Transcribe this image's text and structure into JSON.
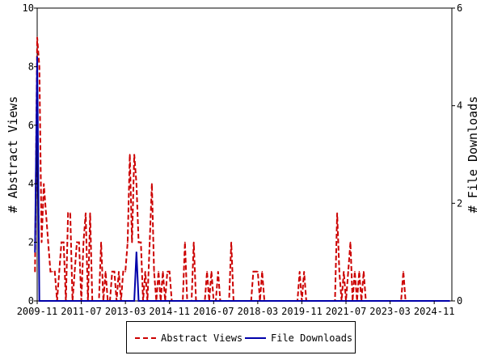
{
  "chart_data": {
    "type": "line",
    "xlabel": "",
    "ylabel": "# Abstract Views",
    "ylabel_right": "# File Downloads",
    "x_tick_labels": [
      "2009-11",
      "2011-07",
      "2013-03",
      "2014-11",
      "2016-07",
      "2018-03",
      "2019-11",
      "2021-07",
      "2023-03",
      "2024-11"
    ],
    "x_start": "2009-11",
    "x_end": "2025-07",
    "ylim": [
      0,
      10
    ],
    "ylim_right": [
      0,
      6
    ],
    "yticks": [
      0,
      2,
      4,
      6,
      8,
      10
    ],
    "yticks_right": [
      0,
      2,
      4,
      6
    ],
    "grid": false,
    "legend_position": "bottom",
    "series": [
      {
        "name": "Abstract Views",
        "axis": "left",
        "color": "#cc0000",
        "dash": "dashed",
        "points": [
          [
            "2009-10",
            1
          ],
          [
            "2009-11",
            9
          ],
          [
            "2009-12",
            8
          ],
          [
            "2010-01",
            2
          ],
          [
            "2010-02",
            4
          ],
          [
            "2010-03",
            3
          ],
          [
            "2010-04",
            2
          ],
          [
            "2010-05",
            1
          ],
          [
            "2010-06",
            1
          ],
          [
            "2010-07",
            1
          ],
          [
            "2010-08",
            0
          ],
          [
            "2010-09",
            1
          ],
          [
            "2010-10",
            2
          ],
          [
            "2010-11",
            2
          ],
          [
            "2010-12",
            0
          ],
          [
            "2011-01",
            3
          ],
          [
            "2011-02",
            3
          ],
          [
            "2011-03",
            0
          ],
          [
            "2011-04",
            1
          ],
          [
            "2011-05",
            2
          ],
          [
            "2011-06",
            2
          ],
          [
            "2011-07",
            0
          ],
          [
            "2011-08",
            2
          ],
          [
            "2011-09",
            3
          ],
          [
            "2011-10",
            0
          ],
          [
            "2011-11",
            3
          ],
          [
            "2011-12",
            0
          ],
          [
            "2012-01",
            0
          ],
          [
            "2012-02",
            0
          ],
          [
            "2012-03",
            0
          ],
          [
            "2012-04",
            2
          ],
          [
            "2012-05",
            0
          ],
          [
            "2012-06",
            1
          ],
          [
            "2012-07",
            0
          ],
          [
            "2012-08",
            0
          ],
          [
            "2012-09",
            1
          ],
          [
            "2012-10",
            1
          ],
          [
            "2012-11",
            0
          ],
          [
            "2012-12",
            1
          ],
          [
            "2013-01",
            0
          ],
          [
            "2013-02",
            1
          ],
          [
            "2013-03",
            1
          ],
          [
            "2013-04",
            2
          ],
          [
            "2013-05",
            5
          ],
          [
            "2013-06",
            2
          ],
          [
            "2013-07",
            5
          ],
          [
            "2013-08",
            4
          ],
          [
            "2013-09",
            2
          ],
          [
            "2013-10",
            2
          ],
          [
            "2013-11",
            0
          ],
          [
            "2013-12",
            1
          ],
          [
            "2014-01",
            0
          ],
          [
            "2014-02",
            2
          ],
          [
            "2014-03",
            4
          ],
          [
            "2014-04",
            1
          ],
          [
            "2014-05",
            0
          ],
          [
            "2014-06",
            1
          ],
          [
            "2014-07",
            0
          ],
          [
            "2014-08",
            1
          ],
          [
            "2014-09",
            0
          ],
          [
            "2014-10",
            1
          ],
          [
            "2014-11",
            1
          ],
          [
            "2014-12",
            0
          ],
          [
            "2015-01",
            0
          ],
          [
            "2015-02",
            0
          ],
          [
            "2015-03",
            0
          ],
          [
            "2015-04",
            0
          ],
          [
            "2015-05",
            0
          ],
          [
            "2015-06",
            2
          ],
          [
            "2015-07",
            0
          ],
          [
            "2015-08",
            0
          ],
          [
            "2015-09",
            0
          ],
          [
            "2015-10",
            2
          ],
          [
            "2015-11",
            0
          ],
          [
            "2015-12",
            0
          ],
          [
            "2016-01",
            0
          ],
          [
            "2016-02",
            0
          ],
          [
            "2016-03",
            0
          ],
          [
            "2016-04",
            1
          ],
          [
            "2016-05",
            0
          ],
          [
            "2016-06",
            1
          ],
          [
            "2016-07",
            0
          ],
          [
            "2016-08",
            0
          ],
          [
            "2016-09",
            1
          ],
          [
            "2016-10",
            0
          ],
          [
            "2016-11",
            0
          ],
          [
            "2016-12",
            0
          ],
          [
            "2017-01",
            0
          ],
          [
            "2017-02",
            0
          ],
          [
            "2017-03",
            2
          ],
          [
            "2017-04",
            0
          ],
          [
            "2017-05",
            0
          ],
          [
            "2017-06",
            0
          ],
          [
            "2017-07",
            0
          ],
          [
            "2017-08",
            0
          ],
          [
            "2017-09",
            0
          ],
          [
            "2017-10",
            0
          ],
          [
            "2017-11",
            0
          ],
          [
            "2017-12",
            0
          ],
          [
            "2018-01",
            1
          ],
          [
            "2018-02",
            1
          ],
          [
            "2018-03",
            1
          ],
          [
            "2018-04",
            0
          ],
          [
            "2018-05",
            1
          ],
          [
            "2018-06",
            0
          ],
          [
            "2018-07",
            0
          ],
          [
            "2018-08",
            0
          ],
          [
            "2018-09",
            0
          ],
          [
            "2018-10",
            0
          ],
          [
            "2018-11",
            0
          ],
          [
            "2018-12",
            0
          ],
          [
            "2019-01",
            0
          ],
          [
            "2019-02",
            0
          ],
          [
            "2019-03",
            0
          ],
          [
            "2019-04",
            0
          ],
          [
            "2019-05",
            0
          ],
          [
            "2019-06",
            0
          ],
          [
            "2019-07",
            0
          ],
          [
            "2019-08",
            0
          ],
          [
            "2019-09",
            0
          ],
          [
            "2019-10",
            1
          ],
          [
            "2019-11",
            0
          ],
          [
            "2019-12",
            1
          ],
          [
            "2020-01",
            0
          ],
          [
            "2020-02",
            0
          ],
          [
            "2020-03",
            0
          ],
          [
            "2020-04",
            0
          ],
          [
            "2020-05",
            0
          ],
          [
            "2020-06",
            0
          ],
          [
            "2020-07",
            0
          ],
          [
            "2020-08",
            0
          ],
          [
            "2020-09",
            0
          ],
          [
            "2020-10",
            0
          ],
          [
            "2020-11",
            0
          ],
          [
            "2020-12",
            0
          ],
          [
            "2021-01",
            0
          ],
          [
            "2021-02",
            0
          ],
          [
            "2021-03",
            3
          ],
          [
            "2021-04",
            1
          ],
          [
            "2021-05",
            0
          ],
          [
            "2021-06",
            1
          ],
          [
            "2021-07",
            0
          ],
          [
            "2021-08",
            1
          ],
          [
            "2021-09",
            2
          ],
          [
            "2021-10",
            0
          ],
          [
            "2021-11",
            1
          ],
          [
            "2021-12",
            0
          ],
          [
            "2022-01",
            1
          ],
          [
            "2022-02",
            0
          ],
          [
            "2022-03",
            1
          ],
          [
            "2022-04",
            0
          ],
          [
            "2022-05",
            0
          ],
          [
            "2022-06",
            0
          ],
          [
            "2022-07",
            0
          ],
          [
            "2022-08",
            0
          ],
          [
            "2022-09",
            0
          ],
          [
            "2022-10",
            0
          ],
          [
            "2022-11",
            0
          ],
          [
            "2022-12",
            0
          ],
          [
            "2023-01",
            0
          ],
          [
            "2023-02",
            0
          ],
          [
            "2023-03",
            0
          ],
          [
            "2023-04",
            0
          ],
          [
            "2023-05",
            0
          ],
          [
            "2023-06",
            0
          ],
          [
            "2023-07",
            0
          ],
          [
            "2023-08",
            0
          ],
          [
            "2023-09",
            1
          ],
          [
            "2023-10",
            0
          ],
          [
            "2023-11",
            0
          ],
          [
            "2023-12",
            0
          ],
          [
            "2025-06",
            0
          ]
        ]
      },
      {
        "name": "File Downloads",
        "axis": "right",
        "color": "#0000aa",
        "dash": "solid",
        "points": [
          [
            "2009-10",
            1
          ],
          [
            "2009-11",
            5
          ],
          [
            "2009-12",
            0
          ],
          [
            "2010-01",
            0
          ],
          [
            "2013-07",
            0
          ],
          [
            "2013-08",
            1
          ],
          [
            "2013-09",
            0
          ],
          [
            "2025-06",
            0
          ]
        ]
      }
    ],
    "legend": [
      "Abstract Views",
      "File Downloads"
    ]
  }
}
